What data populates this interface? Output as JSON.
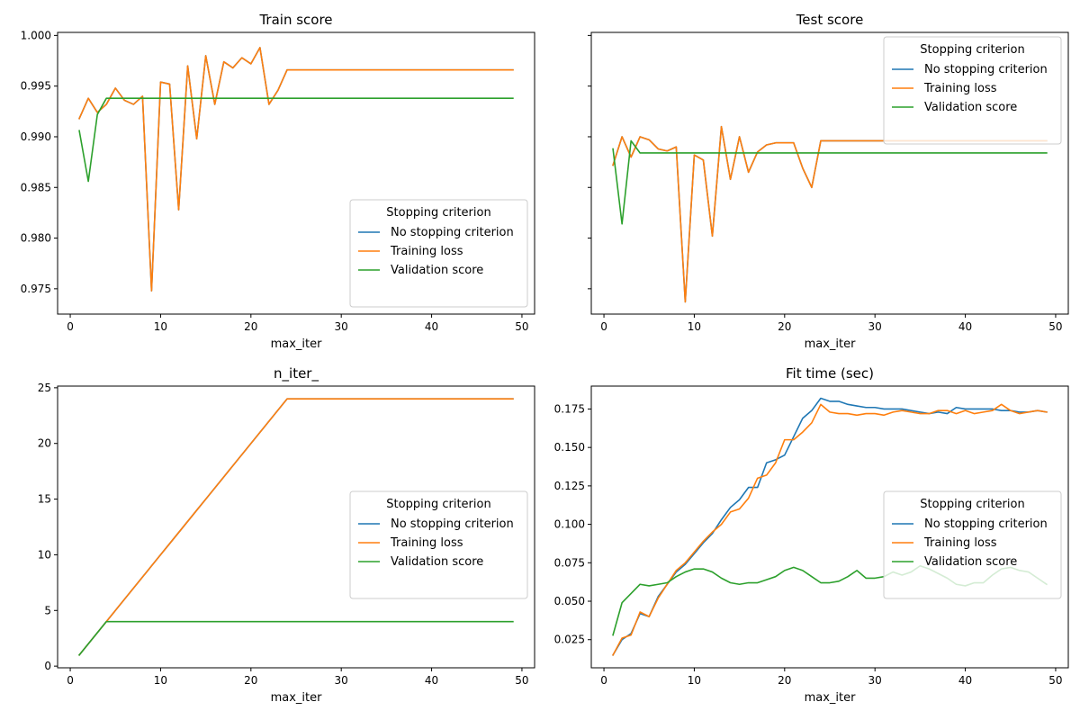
{
  "figure": {
    "background": "#ffffff"
  },
  "chart_data": [
    {
      "type": "line",
      "title": "Train score",
      "xlabel": "max_iter",
      "ylabel": "",
      "xlim": [
        -1.4,
        51.4
      ],
      "ylim": [
        0.9725,
        1.0003
      ],
      "xticks": [
        0,
        10,
        20,
        30,
        40,
        50
      ],
      "yticks": [
        0.975,
        0.98,
        0.985,
        0.99,
        0.995,
        1.0
      ],
      "ytick_labels": [
        "0.975",
        "0.980",
        "0.985",
        "0.990",
        "0.995",
        "1.000"
      ],
      "show_ytick_labels": true,
      "legend": {
        "title": "Stopping criterion",
        "placement": "lower right"
      },
      "x": [
        1,
        2,
        3,
        4,
        5,
        6,
        7,
        8,
        9,
        10,
        11,
        12,
        13,
        14,
        15,
        16,
        17,
        18,
        19,
        20,
        21,
        22,
        23,
        24,
        25,
        26,
        27,
        28,
        29,
        30,
        31,
        32,
        33,
        34,
        35,
        36,
        37,
        38,
        39,
        40,
        41,
        42,
        43,
        44,
        45,
        46,
        47,
        48,
        49
      ],
      "series": [
        {
          "name": "No stopping criterion",
          "color": "#1f77b4",
          "values": [
            0.9918,
            0.9938,
            0.9924,
            0.9932,
            0.9948,
            0.9936,
            0.9932,
            0.994,
            0.9748,
            0.9954,
            0.9952,
            0.9828,
            0.997,
            0.9898,
            0.998,
            0.9932,
            0.9974,
            0.9968,
            0.9978,
            0.9972,
            0.9988,
            0.9932,
            0.9946,
            0.9966,
            0.9966,
            0.9966,
            0.9966,
            0.9966,
            0.9966,
            0.9966,
            0.9966,
            0.9966,
            0.9966,
            0.9966,
            0.9966,
            0.9966,
            0.9966,
            0.9966,
            0.9966,
            0.9966,
            0.9966,
            0.9966,
            0.9966,
            0.9966,
            0.9966,
            0.9966,
            0.9966,
            0.9966,
            0.9966
          ]
        },
        {
          "name": "Training loss",
          "color": "#ff7f0e",
          "values": [
            0.9918,
            0.9938,
            0.9924,
            0.9932,
            0.9948,
            0.9936,
            0.9932,
            0.994,
            0.9748,
            0.9954,
            0.9952,
            0.9828,
            0.997,
            0.9898,
            0.998,
            0.9932,
            0.9974,
            0.9968,
            0.9978,
            0.9972,
            0.9988,
            0.9932,
            0.9946,
            0.9966,
            0.9966,
            0.9966,
            0.9966,
            0.9966,
            0.9966,
            0.9966,
            0.9966,
            0.9966,
            0.9966,
            0.9966,
            0.9966,
            0.9966,
            0.9966,
            0.9966,
            0.9966,
            0.9966,
            0.9966,
            0.9966,
            0.9966,
            0.9966,
            0.9966,
            0.9966,
            0.9966,
            0.9966,
            0.9966
          ]
        },
        {
          "name": "Validation score",
          "color": "#2ca02c",
          "values": [
            0.9906,
            0.9856,
            0.9922,
            0.9938,
            0.9938,
            0.9938,
            0.9938,
            0.9938,
            0.9938,
            0.9938,
            0.9938,
            0.9938,
            0.9938,
            0.9938,
            0.9938,
            0.9938,
            0.9938,
            0.9938,
            0.9938,
            0.9938,
            0.9938,
            0.9938,
            0.9938,
            0.9938,
            0.9938,
            0.9938,
            0.9938,
            0.9938,
            0.9938,
            0.9938,
            0.9938,
            0.9938,
            0.9938,
            0.9938,
            0.9938,
            0.9938,
            0.9938,
            0.9938,
            0.9938,
            0.9938,
            0.9938,
            0.9938,
            0.9938,
            0.9938,
            0.9938,
            0.9938,
            0.9938,
            0.9938,
            0.9938
          ]
        }
      ]
    },
    {
      "type": "line",
      "title": "Test score",
      "xlabel": "max_iter",
      "ylabel": "",
      "xlim": [
        -1.4,
        51.4
      ],
      "ylim": [
        0.9725,
        1.0003
      ],
      "xticks": [
        0,
        10,
        20,
        30,
        40,
        50
      ],
      "yticks": [
        0.975,
        0.98,
        0.985,
        0.99,
        0.995,
        1.0
      ],
      "ytick_labels": [
        "0.975",
        "0.980",
        "0.985",
        "0.990",
        "0.995",
        "1.000"
      ],
      "show_ytick_labels": false,
      "legend": {
        "title": "Stopping criterion",
        "placement": "upper right"
      },
      "x": [
        1,
        2,
        3,
        4,
        5,
        6,
        7,
        8,
        9,
        10,
        11,
        12,
        13,
        14,
        15,
        16,
        17,
        18,
        19,
        20,
        21,
        22,
        23,
        24,
        25,
        26,
        27,
        28,
        29,
        30,
        31,
        32,
        33,
        34,
        35,
        36,
        37,
        38,
        39,
        40,
        41,
        42,
        43,
        44,
        45,
        46,
        47,
        48,
        49
      ],
      "series": [
        {
          "name": "No stopping criterion",
          "color": "#1f77b4",
          "values": [
            0.9872,
            0.99,
            0.988,
            0.99,
            0.9897,
            0.9888,
            0.9886,
            0.989,
            0.9737,
            0.9882,
            0.9877,
            0.9802,
            0.991,
            0.9858,
            0.99,
            0.9865,
            0.9885,
            0.9892,
            0.9894,
            0.9894,
            0.9894,
            0.9869,
            0.985,
            0.9896,
            0.9896,
            0.9896,
            0.9896,
            0.9896,
            0.9896,
            0.9896,
            0.9896,
            0.9896,
            0.9896,
            0.9896,
            0.9896,
            0.9896,
            0.9896,
            0.9896,
            0.9896,
            0.9896,
            0.9896,
            0.9896,
            0.9896,
            0.9896,
            0.9896,
            0.9896,
            0.9896,
            0.9896,
            0.9896
          ]
        },
        {
          "name": "Training loss",
          "color": "#ff7f0e",
          "values": [
            0.9872,
            0.99,
            0.988,
            0.99,
            0.9897,
            0.9888,
            0.9886,
            0.989,
            0.9737,
            0.9882,
            0.9877,
            0.9802,
            0.991,
            0.9858,
            0.99,
            0.9865,
            0.9885,
            0.9892,
            0.9894,
            0.9894,
            0.9894,
            0.9869,
            0.985,
            0.9896,
            0.9896,
            0.9896,
            0.9896,
            0.9896,
            0.9896,
            0.9896,
            0.9896,
            0.9896,
            0.9896,
            0.9896,
            0.9896,
            0.9896,
            0.9896,
            0.9896,
            0.9896,
            0.9896,
            0.9896,
            0.9896,
            0.9896,
            0.9896,
            0.9896,
            0.9896,
            0.9896,
            0.9896,
            0.9896
          ]
        },
        {
          "name": "Validation score",
          "color": "#2ca02c",
          "values": [
            0.9888,
            0.9814,
            0.9896,
            0.9884,
            0.9884,
            0.9884,
            0.9884,
            0.9884,
            0.9884,
            0.9884,
            0.9884,
            0.9884,
            0.9884,
            0.9884,
            0.9884,
            0.9884,
            0.9884,
            0.9884,
            0.9884,
            0.9884,
            0.9884,
            0.9884,
            0.9884,
            0.9884,
            0.9884,
            0.9884,
            0.9884,
            0.9884,
            0.9884,
            0.9884,
            0.9884,
            0.9884,
            0.9884,
            0.9884,
            0.9884,
            0.9884,
            0.9884,
            0.9884,
            0.9884,
            0.9884,
            0.9884,
            0.9884,
            0.9884,
            0.9884,
            0.9884,
            0.9884,
            0.9884,
            0.9884,
            0.9884
          ]
        }
      ]
    },
    {
      "type": "line",
      "title": "n_iter_",
      "xlabel": "max_iter",
      "ylabel": "",
      "xlim": [
        -1.4,
        51.4
      ],
      "ylim": [
        -0.15,
        25.15
      ],
      "xticks": [
        0,
        10,
        20,
        30,
        40,
        50
      ],
      "yticks": [
        0,
        5,
        10,
        15,
        20,
        25
      ],
      "ytick_labels": [
        "0",
        "5",
        "10",
        "15",
        "20",
        "25"
      ],
      "show_ytick_labels": true,
      "legend": {
        "title": "Stopping criterion",
        "placement": "center right"
      },
      "x": [
        1,
        2,
        3,
        4,
        5,
        6,
        7,
        8,
        9,
        10,
        11,
        12,
        13,
        14,
        15,
        16,
        17,
        18,
        19,
        20,
        21,
        22,
        23,
        24,
        25,
        26,
        27,
        28,
        29,
        30,
        31,
        32,
        33,
        34,
        35,
        36,
        37,
        38,
        39,
        40,
        41,
        42,
        43,
        44,
        45,
        46,
        47,
        48,
        49
      ],
      "series": [
        {
          "name": "No stopping criterion",
          "color": "#1f77b4",
          "values": [
            1,
            2,
            3,
            4,
            5,
            6,
            7,
            8,
            9,
            10,
            11,
            12,
            13,
            14,
            15,
            16,
            17,
            18,
            19,
            20,
            21,
            22,
            23,
            24,
            24,
            24,
            24,
            24,
            24,
            24,
            24,
            24,
            24,
            24,
            24,
            24,
            24,
            24,
            24,
            24,
            24,
            24,
            24,
            24,
            24,
            24,
            24,
            24,
            24
          ]
        },
        {
          "name": "Training loss",
          "color": "#ff7f0e",
          "values": [
            1,
            2,
            3,
            4,
            5,
            6,
            7,
            8,
            9,
            10,
            11,
            12,
            13,
            14,
            15,
            16,
            17,
            18,
            19,
            20,
            21,
            22,
            23,
            24,
            24,
            24,
            24,
            24,
            24,
            24,
            24,
            24,
            24,
            24,
            24,
            24,
            24,
            24,
            24,
            24,
            24,
            24,
            24,
            24,
            24,
            24,
            24,
            24,
            24
          ]
        },
        {
          "name": "Validation score",
          "color": "#2ca02c",
          "values": [
            1,
            2,
            3,
            4,
            4,
            4,
            4,
            4,
            4,
            4,
            4,
            4,
            4,
            4,
            4,
            4,
            4,
            4,
            4,
            4,
            4,
            4,
            4,
            4,
            4,
            4,
            4,
            4,
            4,
            4,
            4,
            4,
            4,
            4,
            4,
            4,
            4,
            4,
            4,
            4,
            4,
            4,
            4,
            4,
            4,
            4,
            4,
            4,
            4
          ]
        }
      ]
    },
    {
      "type": "line",
      "title": "Fit time (sec)",
      "xlabel": "max_iter",
      "ylabel": "",
      "xlim": [
        -1.4,
        51.4
      ],
      "ylim": [
        0.0067,
        0.1899
      ],
      "xticks": [
        0,
        10,
        20,
        30,
        40,
        50
      ],
      "yticks": [
        0.025,
        0.05,
        0.075,
        0.1,
        0.125,
        0.15,
        0.175
      ],
      "ytick_labels": [
        "0.025",
        "0.050",
        "0.075",
        "0.100",
        "0.125",
        "0.150",
        "0.175"
      ],
      "show_ytick_labels": true,
      "legend": {
        "title": "Stopping criterion",
        "placement": "center right"
      },
      "x": [
        1,
        2,
        3,
        4,
        5,
        6,
        7,
        8,
        9,
        10,
        11,
        12,
        13,
        14,
        15,
        16,
        17,
        18,
        19,
        20,
        21,
        22,
        23,
        24,
        25,
        26,
        27,
        28,
        29,
        30,
        31,
        32,
        33,
        34,
        35,
        36,
        37,
        38,
        39,
        40,
        41,
        42,
        43,
        44,
        45,
        46,
        47,
        48,
        49
      ],
      "series": [
        {
          "name": "No stopping criterion",
          "color": "#1f77b4",
          "values": [
            0.015,
            0.025,
            0.029,
            0.042,
            0.04,
            0.053,
            0.061,
            0.069,
            0.074,
            0.081,
            0.088,
            0.094,
            0.103,
            0.111,
            0.116,
            0.124,
            0.124,
            0.14,
            0.142,
            0.145,
            0.157,
            0.169,
            0.174,
            0.182,
            0.18,
            0.18,
            0.178,
            0.177,
            0.176,
            0.176,
            0.175,
            0.175,
            0.175,
            0.174,
            0.173,
            0.172,
            0.173,
            0.172,
            0.176,
            0.175,
            0.175,
            0.175,
            0.175,
            0.174,
            0.174,
            0.173,
            0.173,
            0.174,
            0.173
          ]
        },
        {
          "name": "Training loss",
          "color": "#ff7f0e",
          "values": [
            0.015,
            0.026,
            0.028,
            0.043,
            0.04,
            0.052,
            0.061,
            0.07,
            0.075,
            0.082,
            0.089,
            0.095,
            0.1,
            0.108,
            0.11,
            0.117,
            0.13,
            0.132,
            0.14,
            0.155,
            0.155,
            0.16,
            0.166,
            0.178,
            0.173,
            0.172,
            0.172,
            0.171,
            0.172,
            0.172,
            0.171,
            0.173,
            0.174,
            0.173,
            0.172,
            0.172,
            0.174,
            0.174,
            0.172,
            0.174,
            0.172,
            0.173,
            0.174,
            0.178,
            0.174,
            0.172,
            0.173,
            0.174,
            0.173
          ]
        },
        {
          "name": "Validation score",
          "color": "#2ca02c",
          "values": [
            0.028,
            0.049,
            0.055,
            0.061,
            0.06,
            0.061,
            0.062,
            0.066,
            0.069,
            0.071,
            0.071,
            0.069,
            0.065,
            0.062,
            0.061,
            0.062,
            0.062,
            0.064,
            0.066,
            0.07,
            0.072,
            0.07,
            0.066,
            0.062,
            0.062,
            0.063,
            0.066,
            0.07,
            0.065,
            0.065,
            0.066,
            0.069,
            0.067,
            0.069,
            0.073,
            0.071,
            0.068,
            0.065,
            0.061,
            0.06,
            0.062,
            0.062,
            0.067,
            0.071,
            0.072,
            0.07,
            0.069,
            0.065,
            0.061
          ]
        }
      ]
    }
  ]
}
